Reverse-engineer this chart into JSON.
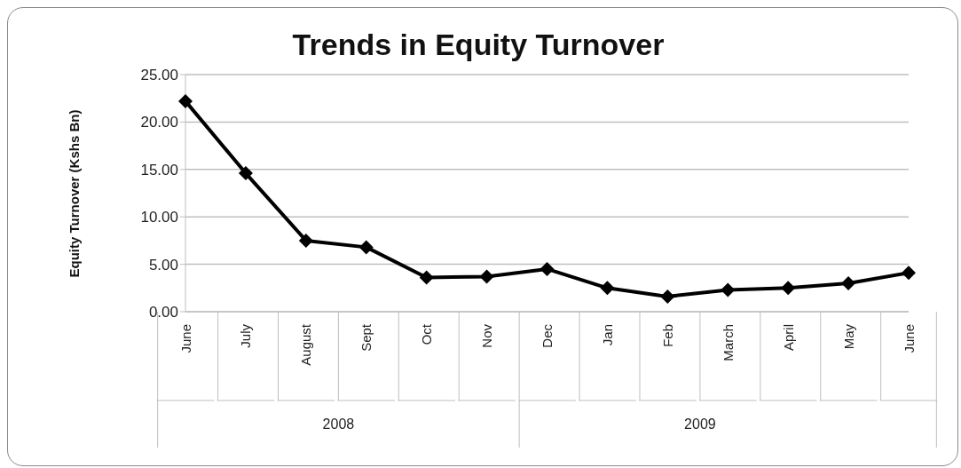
{
  "chart_data": {
    "type": "line",
    "title": "Trends in Equity Turnover",
    "ylabel": "Equity Turnover (Kshs Bn)",
    "categories": [
      "June",
      "July",
      "August",
      "Sept",
      "Oct",
      "Nov",
      "Dec",
      "Jan",
      "Feb",
      "March",
      "April",
      "May",
      "June"
    ],
    "series": [
      {
        "color": "#000000",
        "values": [
          22.2,
          14.6,
          7.5,
          6.8,
          3.6,
          3.7,
          4.5,
          2.5,
          1.6,
          2.3,
          2.5,
          3.0,
          4.1
        ]
      }
    ],
    "ylim": [
      0,
      25
    ],
    "yticks": [
      {
        "value": 0,
        "label": "0.00"
      },
      {
        "value": 5,
        "label": "5.00"
      },
      {
        "value": 10,
        "label": "10.00"
      },
      {
        "value": 15,
        "label": "15.00"
      },
      {
        "value": 20,
        "label": "20.00"
      },
      {
        "value": 25,
        "label": "25.00"
      }
    ],
    "annotations": [
      "2008",
      "2009"
    ],
    "grid": "y",
    "marker": "diamond",
    "line_style": "solid"
  }
}
